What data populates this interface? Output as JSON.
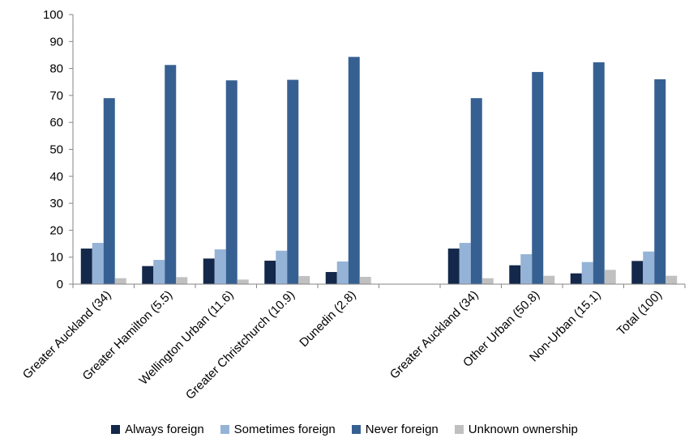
{
  "chart_data": {
    "type": "bar",
    "categories": [
      "Greater Auckland (34)",
      "Greater Hamilton (5.5)",
      "Wellington Urban (11.6)",
      "Greater Christchurch (10.9)",
      "Dunedin (2.8)",
      "",
      "Greater Auckland (34)",
      "Other Urban (50.8)",
      "Non-Urban (15.1)",
      "Total (100)"
    ],
    "series": [
      {
        "name": "Always foreign",
        "color": "#14284b",
        "values": [
          13.2,
          6.7,
          9.5,
          8.7,
          4.5,
          null,
          13.2,
          7.0,
          4.0,
          8.6
        ]
      },
      {
        "name": "Sometimes foreign",
        "color": "#95b3d7",
        "values": [
          15.3,
          9.0,
          12.9,
          12.4,
          8.4,
          null,
          15.3,
          11.1,
          8.2,
          12.1
        ]
      },
      {
        "name": "Never foreign",
        "color": "#376092",
        "values": [
          69.0,
          81.3,
          75.6,
          75.8,
          84.3,
          null,
          69.0,
          78.7,
          82.3,
          76.0
        ]
      },
      {
        "name": "Unknown ownership",
        "color": "#c0c0c0",
        "values": [
          2.2,
          2.6,
          1.7,
          3.0,
          2.7,
          null,
          2.2,
          3.1,
          5.3,
          3.1
        ]
      }
    ],
    "ylim": [
      0,
      100
    ],
    "yticks": [
      "0",
      "10",
      "20",
      "30",
      "40",
      "50",
      "60",
      "70",
      "80",
      "90",
      "100"
    ],
    "grid": false,
    "legend_position": "bottom"
  }
}
